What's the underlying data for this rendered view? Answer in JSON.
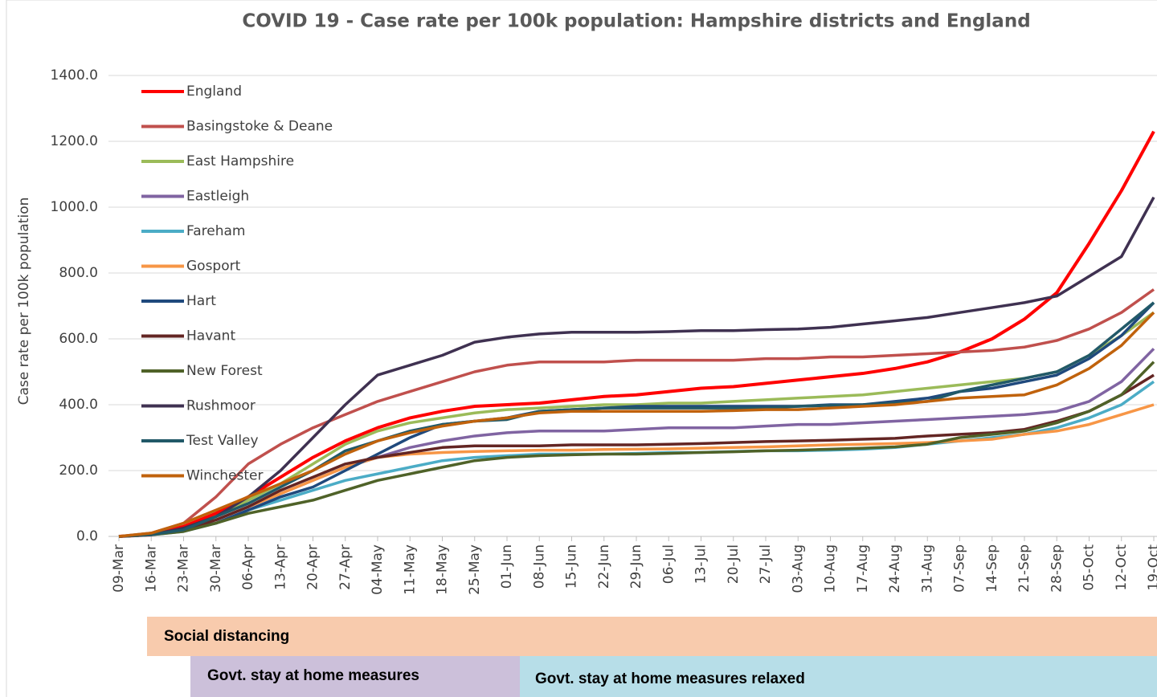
{
  "chart_data": {
    "type": "line",
    "title": "COVID 19 - Case rate per 100k population: Hampshire districts and England",
    "y_label": "Case rate per 100k population",
    "categories": [
      "09-Mar",
      "16-Mar",
      "23-Mar",
      "30-Mar",
      "06-Apr",
      "13-Apr",
      "20-Apr",
      "27-Apr",
      "04-May",
      "11-May",
      "18-May",
      "25-May",
      "01-Jun",
      "08-Jun",
      "15-Jun",
      "22-Jun",
      "29-Jun",
      "06-Jul",
      "13-Jul",
      "20-Jul",
      "27-Jul",
      "03-Aug",
      "10-Aug",
      "17-Aug",
      "24-Aug",
      "31-Aug",
      "07-Sep",
      "14-Sep",
      "21-Sep",
      "28-Sep",
      "05-Oct",
      "12-Oct",
      "19-Oct"
    ],
    "ylim": [
      0,
      1400
    ],
    "yticks": [
      {
        "value": 0,
        "label": "0.0"
      },
      {
        "value": 200,
        "label": "200.0"
      },
      {
        "value": 400,
        "label": "400.0"
      },
      {
        "value": 600,
        "label": "600.0"
      },
      {
        "value": 800,
        "label": "800.0"
      },
      {
        "value": 1000,
        "label": "1000.0"
      },
      {
        "value": 1200,
        "label": "1200.0"
      },
      {
        "value": 1400,
        "label": "1400.0"
      }
    ],
    "grid": true,
    "legend": "upper left",
    "series": [
      {
        "name": "England",
        "color": "#ff0000",
        "values": [
          0,
          5,
          30,
          70,
          120,
          180,
          240,
          290,
          330,
          360,
          380,
          395,
          400,
          405,
          415,
          425,
          430,
          440,
          450,
          455,
          465,
          475,
          485,
          495,
          510,
          530,
          560,
          600,
          660,
          740,
          890,
          1050,
          1230
        ]
      },
      {
        "name": "Basingstoke & Deane",
        "color": "#c0504d",
        "values": [
          0,
          10,
          40,
          120,
          220,
          280,
          330,
          370,
          410,
          440,
          470,
          500,
          520,
          530,
          530,
          530,
          535,
          535,
          535,
          535,
          540,
          540,
          545,
          545,
          550,
          555,
          560,
          565,
          575,
          595,
          630,
          680,
          750
        ]
      },
      {
        "name": "East Hampshire",
        "color": "#9bbb59",
        "values": [
          0,
          5,
          20,
          60,
          110,
          160,
          220,
          280,
          320,
          345,
          360,
          375,
          385,
          390,
          395,
          400,
          400,
          405,
          405,
          410,
          415,
          420,
          425,
          430,
          440,
          450,
          460,
          470,
          480,
          500,
          550,
          610,
          680
        ]
      },
      {
        "name": "Eastleigh",
        "color": "#8064a2",
        "values": [
          0,
          5,
          20,
          50,
          90,
          130,
          170,
          210,
          240,
          270,
          290,
          305,
          315,
          320,
          320,
          320,
          325,
          330,
          330,
          330,
          335,
          340,
          340,
          345,
          350,
          355,
          360,
          365,
          370,
          380,
          410,
          470,
          570
        ]
      },
      {
        "name": "Fareham",
        "color": "#4bacc6",
        "values": [
          0,
          5,
          15,
          40,
          80,
          110,
          140,
          170,
          190,
          210,
          230,
          240,
          245,
          250,
          250,
          250,
          252,
          255,
          255,
          258,
          260,
          260,
          262,
          265,
          270,
          280,
          290,
          300,
          310,
          330,
          360,
          400,
          470
        ]
      },
      {
        "name": "Gosport",
        "color": "#f79646",
        "values": [
          0,
          5,
          20,
          50,
          90,
          130,
          170,
          210,
          240,
          250,
          255,
          258,
          260,
          262,
          262,
          264,
          265,
          266,
          268,
          270,
          272,
          275,
          278,
          280,
          282,
          285,
          290,
          295,
          310,
          320,
          340,
          370,
          400
        ]
      },
      {
        "name": "Hart",
        "color": "#1f497d",
        "values": [
          0,
          5,
          20,
          40,
          80,
          120,
          150,
          200,
          250,
          300,
          340,
          350,
          360,
          380,
          385,
          390,
          395,
          395,
          395,
          395,
          395,
          395,
          400,
          400,
          410,
          420,
          440,
          450,
          470,
          490,
          540,
          610,
          710
        ]
      },
      {
        "name": "Havant",
        "color": "#632523",
        "values": [
          0,
          5,
          20,
          50,
          90,
          140,
          180,
          220,
          240,
          255,
          270,
          275,
          275,
          275,
          278,
          278,
          278,
          280,
          282,
          285,
          288,
          290,
          292,
          295,
          298,
          305,
          310,
          315,
          325,
          350,
          380,
          430,
          490
        ]
      },
      {
        "name": "New Forest",
        "color": "#4f6228",
        "values": [
          0,
          5,
          15,
          40,
          70,
          90,
          110,
          140,
          170,
          190,
          210,
          230,
          240,
          245,
          248,
          250,
          250,
          252,
          255,
          257,
          260,
          262,
          265,
          268,
          272,
          280,
          300,
          310,
          320,
          345,
          380,
          430,
          530
        ]
      },
      {
        "name": "Rushmoor",
        "color": "#3f3151",
        "values": [
          0,
          5,
          25,
          60,
          120,
          200,
          300,
          400,
          490,
          520,
          550,
          590,
          605,
          615,
          620,
          620,
          620,
          622,
          625,
          625,
          628,
          630,
          635,
          645,
          655,
          665,
          680,
          695,
          710,
          730,
          790,
          850,
          1030
        ]
      },
      {
        "name": "Test Valley",
        "color": "#215968",
        "values": [
          0,
          5,
          20,
          60,
          100,
          150,
          200,
          260,
          290,
          320,
          340,
          350,
          355,
          380,
          385,
          390,
          390,
          390,
          390,
          390,
          390,
          395,
          398,
          400,
          405,
          410,
          440,
          460,
          480,
          500,
          550,
          630,
          710
        ]
      },
      {
        "name": "Winchester",
        "color": "#c0620c",
        "values": [
          0,
          10,
          40,
          80,
          120,
          160,
          200,
          250,
          290,
          315,
          335,
          350,
          360,
          375,
          380,
          380,
          380,
          380,
          380,
          382,
          385,
          385,
          390,
          395,
          400,
          410,
          420,
          425,
          430,
          460,
          510,
          580,
          680
        ]
      }
    ],
    "annotations": [
      "Social distancing",
      "Govt. stay at home measures",
      "Govt. stay at home measures relaxed"
    ]
  }
}
